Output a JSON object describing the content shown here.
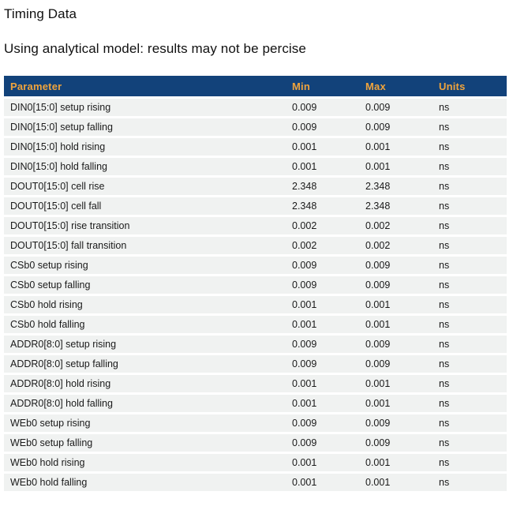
{
  "page": {
    "title": "Timing Data",
    "subtitle": "Using analytical model: results may not be percise"
  },
  "table": {
    "columns": [
      "Parameter",
      "Min",
      "Max",
      "Units"
    ],
    "rows": [
      {
        "parameter": "DIN0[15:0] setup rising",
        "min": "0.009",
        "max": "0.009",
        "units": "ns"
      },
      {
        "parameter": "DIN0[15:0] setup falling",
        "min": "0.009",
        "max": "0.009",
        "units": "ns"
      },
      {
        "parameter": "DIN0[15:0] hold rising",
        "min": "0.001",
        "max": "0.001",
        "units": "ns"
      },
      {
        "parameter": "DIN0[15:0] hold falling",
        "min": "0.001",
        "max": "0.001",
        "units": "ns"
      },
      {
        "parameter": "DOUT0[15:0] cell rise",
        "min": "2.348",
        "max": "2.348",
        "units": "ns"
      },
      {
        "parameter": "DOUT0[15:0] cell fall",
        "min": "2.348",
        "max": "2.348",
        "units": "ns"
      },
      {
        "parameter": "DOUT0[15:0] rise transition",
        "min": "0.002",
        "max": "0.002",
        "units": "ns"
      },
      {
        "parameter": "DOUT0[15:0] fall transition",
        "min": "0.002",
        "max": "0.002",
        "units": "ns"
      },
      {
        "parameter": "CSb0 setup rising",
        "min": "0.009",
        "max": "0.009",
        "units": "ns"
      },
      {
        "parameter": "CSb0 setup falling",
        "min": "0.009",
        "max": "0.009",
        "units": "ns"
      },
      {
        "parameter": "CSb0 hold rising",
        "min": "0.001",
        "max": "0.001",
        "units": "ns"
      },
      {
        "parameter": "CSb0 hold falling",
        "min": "0.001",
        "max": "0.001",
        "units": "ns"
      },
      {
        "parameter": "ADDR0[8:0] setup rising",
        "min": "0.009",
        "max": "0.009",
        "units": "ns"
      },
      {
        "parameter": "ADDR0[8:0] setup falling",
        "min": "0.009",
        "max": "0.009",
        "units": "ns"
      },
      {
        "parameter": "ADDR0[8:0] hold rising",
        "min": "0.001",
        "max": "0.001",
        "units": "ns"
      },
      {
        "parameter": "ADDR0[8:0] hold falling",
        "min": "0.001",
        "max": "0.001",
        "units": "ns"
      },
      {
        "parameter": "WEb0 setup rising",
        "min": "0.009",
        "max": "0.009",
        "units": "ns"
      },
      {
        "parameter": "WEb0 setup falling",
        "min": "0.009",
        "max": "0.009",
        "units": "ns"
      },
      {
        "parameter": "WEb0 hold rising",
        "min": "0.001",
        "max": "0.001",
        "units": "ns"
      },
      {
        "parameter": "WEb0 hold falling",
        "min": "0.001",
        "max": "0.001",
        "units": "ns"
      }
    ]
  },
  "colors": {
    "header_bg": "#12427a",
    "header_text": "#f0a43c",
    "row_bg": "#f0f2f1",
    "page_bg": "#ffffff",
    "body_text": "#1a1a1a"
  }
}
